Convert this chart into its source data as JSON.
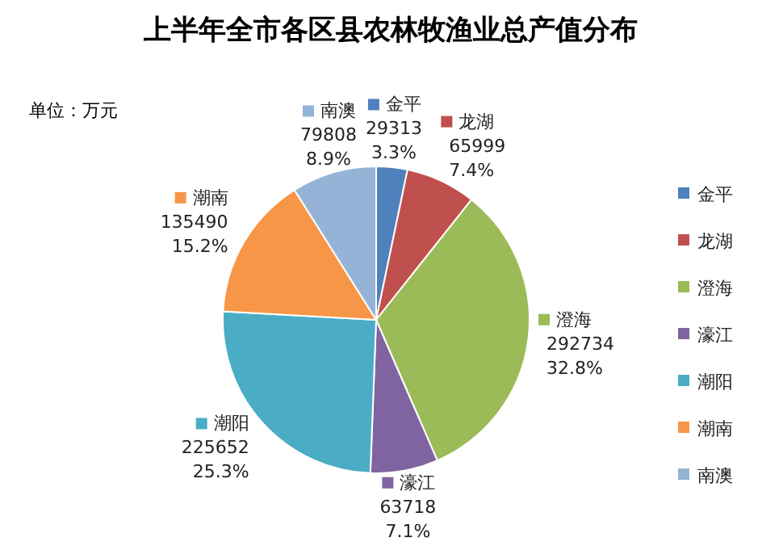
{
  "chart_data": {
    "type": "pie",
    "title": "上半年全市各区县农林牧渔业总产值分布",
    "annotations": [
      "单位：万元"
    ],
    "categories": [
      "金平",
      "龙湖",
      "澄海",
      "濠江",
      "潮阳",
      "潮南",
      "南澳"
    ],
    "values": [
      29313,
      65999,
      292734,
      63718,
      225652,
      135490,
      79808
    ],
    "value_labels": [
      "29313 3.3%",
      "65999 7.4%",
      "292734 32.8%",
      "63718 7.1%",
      "225652 25.3%",
      "135490 15.2%",
      "79808 8.9%"
    ],
    "colors": [
      "#4f81bd",
      "#c0504d",
      "#9bbb59",
      "#8064a2",
      "#4bacc6",
      "#f79646",
      "#95b3d7"
    ],
    "legend": "right"
  }
}
